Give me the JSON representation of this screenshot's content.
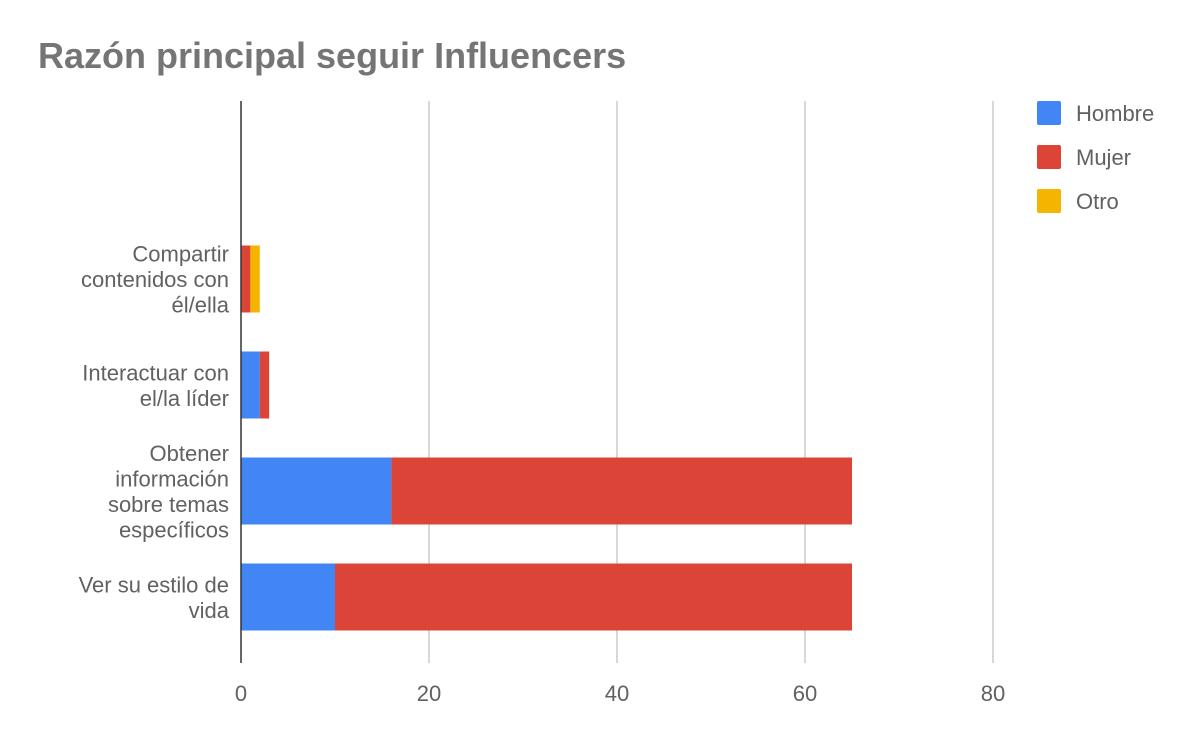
{
  "chart_data": {
    "type": "bar",
    "orientation": "horizontal",
    "stacked": true,
    "title": "Razón principal seguir Influencers",
    "xlabel": "",
    "ylabel": "",
    "categories": [
      [
        "Compartir",
        "contenidos con",
        "él/ella"
      ],
      [
        "Interactuar con",
        "el/la líder"
      ],
      [
        "Obtener",
        "información",
        "sobre temas",
        "específicos"
      ],
      [
        "Ver su estilo de",
        "vida"
      ]
    ],
    "series": [
      {
        "name": "Hombre",
        "color": "#4285f4",
        "values": [
          0,
          2,
          16,
          10
        ]
      },
      {
        "name": "Mujer",
        "color": "#db4437",
        "values": [
          1,
          1,
          49,
          55
        ]
      },
      {
        "name": "Otro",
        "color": "#f4b400",
        "values": [
          1,
          0,
          0,
          0
        ]
      }
    ],
    "xlim": [
      0,
      80
    ],
    "xticks": [
      0,
      20,
      40,
      60,
      80
    ],
    "grid": true,
    "legend_position": "top-right"
  }
}
